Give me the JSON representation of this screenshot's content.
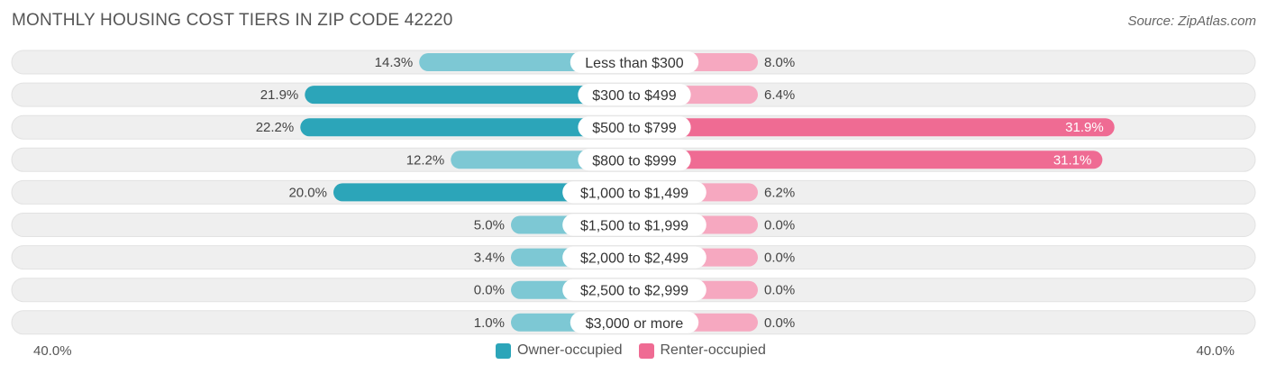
{
  "title": "MONTHLY HOUSING COST TIERS IN ZIP CODE 42220",
  "source": "Source: ZipAtlas.com",
  "colors": {
    "owner": "#2ca5b9",
    "owner_light": "#7dc8d4",
    "renter": "#ef6b93",
    "renter_light": "#f6a8c0",
    "row_bg": "#efefef"
  },
  "legend": {
    "owner_label": "Owner-occupied",
    "renter_label": "Renter-occupied"
  },
  "axis": {
    "left_label": "40.0%",
    "right_label": "40.0%"
  },
  "chart_data": {
    "type": "bar",
    "orientation": "horizontal-diverging",
    "title": "MONTHLY HOUSING COST TIERS IN ZIP CODE 42220",
    "xlim": [
      -40,
      40
    ],
    "categories": [
      "Less than $300",
      "$300 to $499",
      "$500 to $799",
      "$800 to $999",
      "$1,000 to $1,499",
      "$1,500 to $1,999",
      "$2,000 to $2,499",
      "$2,500 to $2,999",
      "$3,000 or more"
    ],
    "series": [
      {
        "name": "Owner-occupied",
        "values": [
          14.3,
          21.9,
          22.2,
          12.2,
          20.0,
          5.0,
          3.4,
          0.0,
          1.0
        ],
        "labels": [
          "14.3%",
          "21.9%",
          "22.2%",
          "12.2%",
          "20.0%",
          "5.0%",
          "3.4%",
          "0.0%",
          "1.0%"
        ]
      },
      {
        "name": "Renter-occupied",
        "values": [
          8.0,
          6.4,
          31.9,
          31.1,
          6.2,
          0.0,
          0.0,
          0.0,
          0.0
        ],
        "labels": [
          "8.0%",
          "6.4%",
          "31.9%",
          "31.1%",
          "6.2%",
          "0.0%",
          "0.0%",
          "0.0%",
          "0.0%"
        ]
      }
    ],
    "legend_position": "bottom-center"
  }
}
